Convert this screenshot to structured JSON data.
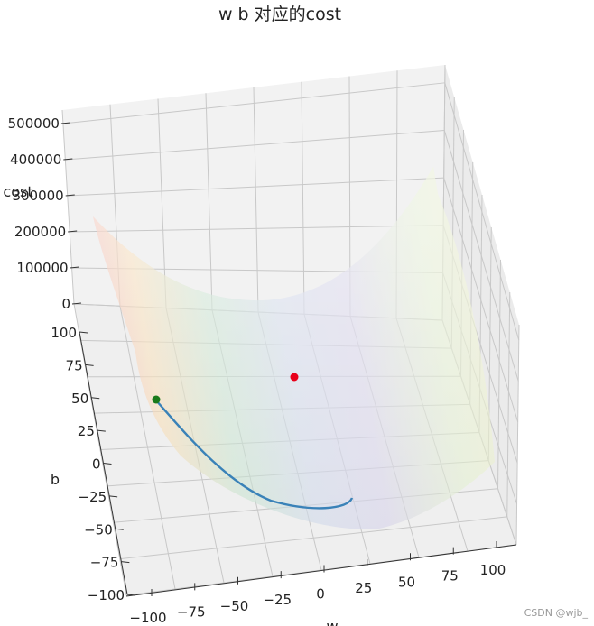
{
  "chart_data": {
    "type": "surface",
    "title": "w b 对应的cost",
    "xlabel": "w",
    "ylabel": "b",
    "zlabel": "cost",
    "x_ticks": [
      "−100",
      "−75",
      "−50",
      "−25",
      "0",
      "25",
      "50",
      "75",
      "100"
    ],
    "y_ticks": [
      "−100",
      "−75",
      "−50",
      "−25",
      "0",
      "25",
      "50",
      "75",
      "100"
    ],
    "z_ticks": [
      "0",
      "100000",
      "200000",
      "300000",
      "400000",
      "500000"
    ],
    "xlim": [
      -100,
      100
    ],
    "ylim": [
      -100,
      100
    ],
    "zlim": [
      0,
      500000
    ],
    "grid": true,
    "surface_colormap": "Spectral",
    "minimum_point": {
      "w": 1.4,
      "b": 60,
      "cost": 0,
      "color": "#e8001a"
    },
    "start_point": {
      "w": -100,
      "b": 100,
      "color": "#1a7a1a"
    },
    "descent_path_color": "#3a82b8"
  },
  "watermark": "CSDN @wjb_"
}
